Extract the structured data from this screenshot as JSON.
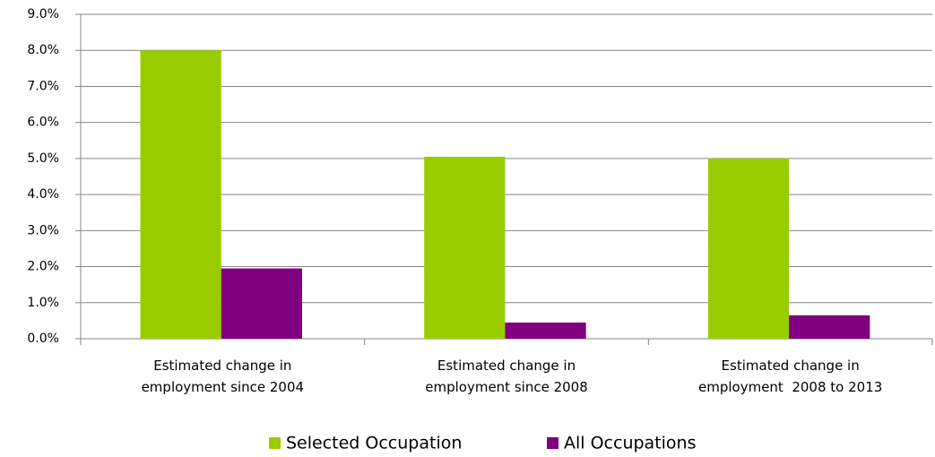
{
  "chart_data": {
    "type": "bar",
    "categories": [
      "Estimated change in\nemployment since 2004",
      "Estimated change in\nemployment since 2008",
      "Estimated change in\nemployment  2008 to 2013"
    ],
    "series": [
      {
        "name": "Selected Occupation",
        "color": "#99cc00",
        "values": [
          8.0,
          5.05,
          5.0
        ]
      },
      {
        "name": "All Occupations",
        "color": "#800080",
        "values": [
          1.95,
          0.45,
          0.65
        ]
      }
    ],
    "ylim": [
      0,
      9
    ],
    "yticks": [
      {
        "value": 0,
        "label": "0.0%"
      },
      {
        "value": 1,
        "label": "1.0%"
      },
      {
        "value": 2,
        "label": "2.0%"
      },
      {
        "value": 3,
        "label": "3.0%"
      },
      {
        "value": 4,
        "label": "4.0%"
      },
      {
        "value": 5,
        "label": "5.0%"
      },
      {
        "value": 6,
        "label": "6.0%"
      },
      {
        "value": 7,
        "label": "7.0%"
      },
      {
        "value": 8,
        "label": "8.0%"
      },
      {
        "value": 9,
        "label": "9.0%"
      }
    ],
    "grid": true,
    "legend": "bottom"
  }
}
